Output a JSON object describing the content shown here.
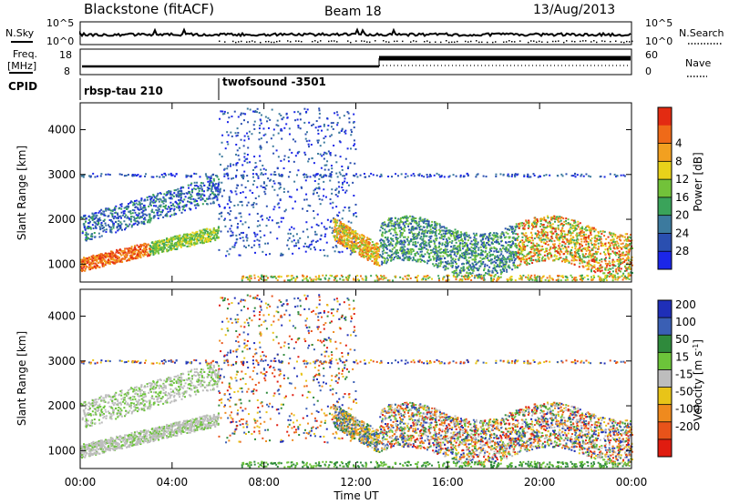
{
  "header": {
    "station": "Blackstone (fitACF)",
    "beam": "Beam 18",
    "date": "13/Aug/2013"
  },
  "top_panels": {
    "nsky_label": "N.Sky",
    "nsky_ticks": [
      "10^5",
      "10^0"
    ],
    "nsearch_label": "N.Search",
    "nsearch_ticks": [
      "10^5",
      "10^0"
    ],
    "freq_label": "Freq.",
    "freq_unit": "[MHz]",
    "freq_ticks": [
      "18",
      "8"
    ],
    "nave_label": "Nave",
    "nave_ticks": [
      "60",
      "0"
    ],
    "cpid_label": "CPID",
    "cpid_segments": [
      {
        "name": "rbsp-tau 210",
        "start_hour": 0
      },
      {
        "name": "twofsound -3501",
        "start_hour": 6
      }
    ]
  },
  "chart_data": [
    {
      "type": "heatmap",
      "name": "power",
      "ylabel": "Slant Range [km]",
      "xlabel": "",
      "y_ticks": [
        "1000",
        "2000",
        "3000",
        "4000"
      ],
      "ylim": [
        600,
        4600
      ],
      "colorbar": {
        "label": "Power [dB]",
        "ticks": [
          "4",
          "8",
          "12",
          "16",
          "20",
          "24",
          "28"
        ],
        "colors": [
          "#1b26e8",
          "#2a4fb0",
          "#3c7a9e",
          "#3aa35a",
          "#72c23a",
          "#e8d21a",
          "#f2a020",
          "#ef6a18",
          "#e32b12"
        ]
      }
    },
    {
      "type": "heatmap",
      "name": "velocity",
      "ylabel": "Slant Range [km]",
      "xlabel": "Time UT",
      "x_ticks": [
        "00:00",
        "04:00",
        "08:00",
        "12:00",
        "16:00",
        "20:00",
        "00:00"
      ],
      "xlim": [
        0,
        24
      ],
      "y_ticks": [
        "1000",
        "2000",
        "3000",
        "4000"
      ],
      "ylim": [
        600,
        4600
      ],
      "colorbar": {
        "label": "Velocity [m s",
        "label_superscript": "-1",
        "label_close": "]",
        "ticks": [
          "200",
          "100",
          "50",
          "15",
          "-15",
          "-50",
          "-100",
          "-200"
        ],
        "colors": [
          "#1f2fb8",
          "#3a5fb4",
          "#2f8a3c",
          "#6cc43a",
          "#bdbdbd",
          "#e8c418",
          "#ef8a1e",
          "#e8531a",
          "#e01c10"
        ]
      }
    }
  ]
}
